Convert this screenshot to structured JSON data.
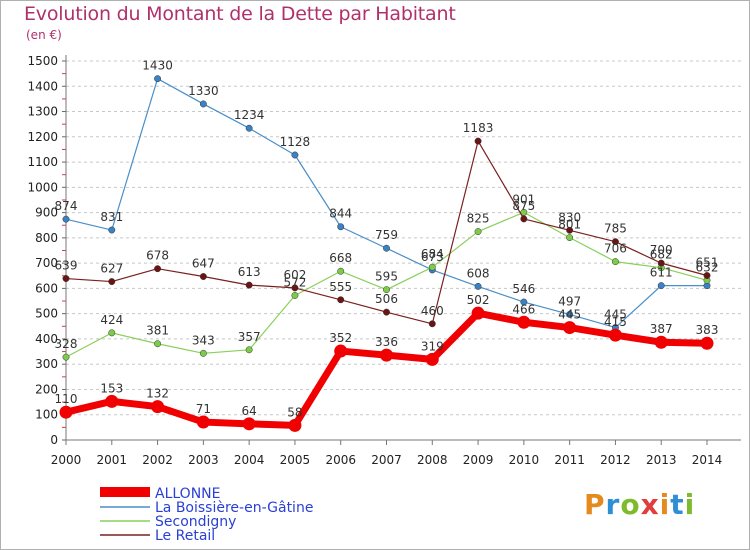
{
  "title": "Evolution du Montant de la Dette par Habitant",
  "subtitle": "(en €)",
  "brand": "Proxiti",
  "brand_colors": [
    "#e58a1f",
    "#2f8fd6",
    "#7dbb2a",
    "#e23d3d"
  ],
  "chart_data": {
    "type": "line",
    "x": [
      2000,
      2001,
      2002,
      2003,
      2004,
      2005,
      2006,
      2007,
      2008,
      2009,
      2010,
      2011,
      2012,
      2013,
      2014
    ],
    "ylim": [
      0,
      1500
    ],
    "yticks": [
      0,
      100,
      200,
      300,
      400,
      500,
      600,
      700,
      800,
      900,
      1000,
      1100,
      1200,
      1300,
      1400,
      1500
    ],
    "grid": "horizontal dashed",
    "legend_position": "bottom-left",
    "series": [
      {
        "name": "La Boissière-en-Gâtine",
        "color": "#4a8fc8",
        "marker": "#3a82c4",
        "width": 1.2,
        "values": [
          874,
          831,
          1430,
          1330,
          1234,
          1128,
          844,
          759,
          673,
          608,
          546,
          497,
          445,
          611,
          611
        ],
        "labels": [
          "874",
          "831",
          "1430",
          "1330",
          "1234",
          "1128",
          "844",
          "759",
          "673",
          "608",
          "546",
          "497",
          "445",
          "611",
          ""
        ]
      },
      {
        "name": "Secondigny",
        "color": "#88d05a",
        "marker": "#7ccc49",
        "width": 1.2,
        "values": [
          328,
          424,
          381,
          343,
          357,
          572,
          668,
          595,
          684,
          825,
          901,
          801,
          706,
          682,
          632
        ],
        "labels": [
          "328",
          "424",
          "381",
          "343",
          "357",
          "572",
          "668",
          "595",
          "684",
          "825",
          "901",
          "801",
          "706",
          "682",
          "632"
        ]
      },
      {
        "name": "Le Retail",
        "color": "#7a2020",
        "marker": "#6b1414",
        "width": 1.2,
        "values": [
          639,
          627,
          678,
          647,
          613,
          602,
          555,
          506,
          460,
          1183,
          875,
          830,
          785,
          700,
          651
        ],
        "labels": [
          "639",
          "627",
          "678",
          "647",
          "613",
          "602",
          "555",
          "506",
          "460",
          "1183",
          "875",
          "830",
          "785",
          "700",
          "651"
        ]
      },
      {
        "name": "ALLONNE",
        "color": "#f00000",
        "marker": "#f00000",
        "width": 7,
        "values": [
          110,
          153,
          132,
          71,
          64,
          58,
          352,
          336,
          319,
          502,
          466,
          445,
          415,
          387,
          383
        ],
        "labels": [
          "110",
          "153",
          "132",
          "71",
          "64",
          "58",
          "352",
          "336",
          "319",
          "502",
          "466",
          "445",
          "415",
          "387",
          "383"
        ]
      }
    ],
    "legend": [
      {
        "name": "ALLONNE",
        "color": "#f00000",
        "thick": true
      },
      {
        "name": "La Boissière-en-Gâtine",
        "color": "#4a8fc8",
        "thick": false
      },
      {
        "name": "Secondigny",
        "color": "#88d05a",
        "thick": false
      },
      {
        "name": "Le Retail",
        "color": "#7a2020",
        "thick": false
      }
    ],
    "legend_text_color": "#2a3fd6"
  }
}
